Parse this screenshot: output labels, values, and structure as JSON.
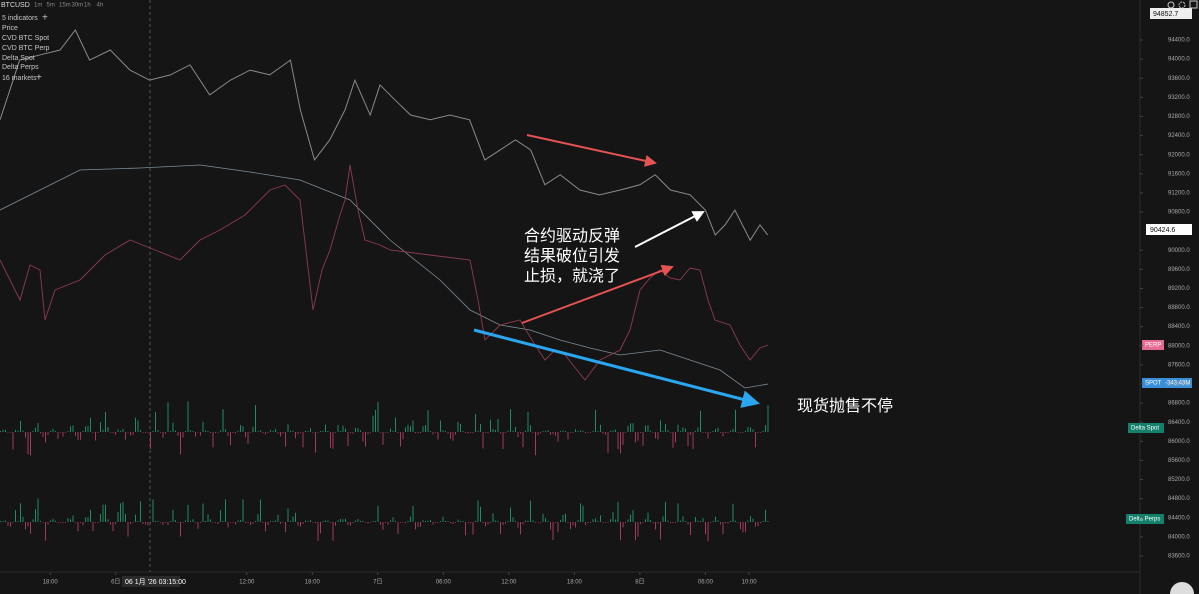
{
  "toolbar": {
    "symbol": "BTCUSD",
    "timeframes": [
      "1m",
      "5m",
      "15m",
      "30m",
      "1h",
      "4h"
    ]
  },
  "legend": {
    "indicators": "5 indicators",
    "items": [
      "CVD BTC Spot",
      "CVD BTC Perp",
      "Delta Spot",
      "Delta Perps"
    ],
    "markets": "16 markets"
  },
  "crosshair_label": "06 1月 '26  03:15:00",
  "price_tags": {
    "high": "94852.7",
    "last": "90424.6",
    "perp": "PERP",
    "spot": "SPOT",
    "spot_value": "-343.43M",
    "delta_spot": "Delta Spot",
    "delta_perps": "Delta Perps"
  },
  "annotations": {
    "rebound": [
      "合约驱动反弹",
      "结果破位引发",
      "止损，就浇了"
    ],
    "spot_selling": "现货抛售不停"
  },
  "chart_data": {
    "type": "line",
    "x": [
      13.4,
      14.3,
      15.2,
      17.1,
      18.9,
      20.3,
      21.6,
      23.5,
      25.3,
      27.1,
      29.0,
      30.8,
      32.6,
      34.5,
      36.3,
      38.1,
      40.0,
      40.9,
      42.2,
      43.6,
      45.0,
      45.9,
      47.3,
      48.2,
      49.6,
      51.0,
      52.8,
      54.6,
      56.4,
      57.8,
      59.2,
      60.6,
      62.0,
      63.3,
      64.7,
      66.5,
      68.3,
      70.2,
      72.0,
      73.4,
      74.8,
      76.6,
      78.0,
      78.9,
      79.8,
      80.7,
      82.1,
      83.0,
      83.7
    ],
    "series": [
      {
        "name": "Price",
        "color": "#8a8a8a",
        "values": [
          92730,
          93350,
          93980,
          94090,
          94190,
          94610,
          93980,
          94190,
          93770,
          93560,
          93670,
          93880,
          93250,
          93560,
          93770,
          93670,
          93980,
          92940,
          91890,
          92310,
          92940,
          93560,
          92830,
          93460,
          93140,
          92830,
          92730,
          92830,
          92730,
          91890,
          92100,
          92310,
          92100,
          91370,
          91580,
          91260,
          91160,
          91260,
          91370,
          91580,
          91260,
          91160,
          90840,
          90320,
          90530,
          90840,
          90210,
          90530,
          90320
        ]
      }
    ],
    "xlim": [
      13.4,
      117.8
    ],
    "xticks": [
      {
        "value": 18,
        "label": "18:00"
      },
      {
        "value": 24,
        "label": "6日"
      },
      {
        "value": 36,
        "label": "12:00"
      },
      {
        "value": 42,
        "label": "18:00"
      },
      {
        "value": 48,
        "label": "7日"
      },
      {
        "value": 54,
        "label": "06:00"
      },
      {
        "value": 60,
        "label": "12:00"
      },
      {
        "value": 66,
        "label": "18:00"
      },
      {
        "value": 72,
        "label": "8日"
      },
      {
        "value": 78,
        "label": "06:00"
      },
      {
        "value": 82,
        "label": "10:00"
      }
    ],
    "ylim": [
      83265,
      95070
    ],
    "yticks": [
      {
        "value": 94400,
        "label": "94400.0"
      },
      {
        "value": 94000,
        "label": "94000.0"
      },
      {
        "value": 93600,
        "label": "93600.0"
      },
      {
        "value": 93200,
        "label": "93200.0"
      },
      {
        "value": 92800,
        "label": "92800.0"
      },
      {
        "value": 92400,
        "label": "92400.0"
      },
      {
        "value": 92000,
        "label": "92000.0"
      },
      {
        "value": 91600,
        "label": "91600.0"
      },
      {
        "value": 91200,
        "label": "91200.0"
      },
      {
        "value": 90800,
        "label": "90800.0"
      },
      {
        "value": 90000,
        "label": "90000.0"
      },
      {
        "value": 89600,
        "label": "89600.0"
      },
      {
        "value": 89200,
        "label": "89200.0"
      },
      {
        "value": 88800,
        "label": "88800.0"
      },
      {
        "value": 88400,
        "label": "88400.0"
      },
      {
        "value": 88000,
        "label": "88000.0"
      },
      {
        "value": 87600,
        "label": "87600.0"
      },
      {
        "value": 87200,
        "label": "87200.0"
      },
      {
        "value": 86800,
        "label": "86800.0"
      },
      {
        "value": 86400,
        "label": "86400.0"
      },
      {
        "value": 86000,
        "label": "86000.0"
      },
      {
        "value": 85600,
        "label": "85600.0"
      },
      {
        "value": 85200,
        "label": "85200.0"
      },
      {
        "value": 84800,
        "label": "84800.0"
      },
      {
        "value": 84400,
        "label": "84400.0"
      },
      {
        "value": 84000,
        "label": "84000.0"
      },
      {
        "value": 83600,
        "label": "83600.0"
      }
    ]
  }
}
